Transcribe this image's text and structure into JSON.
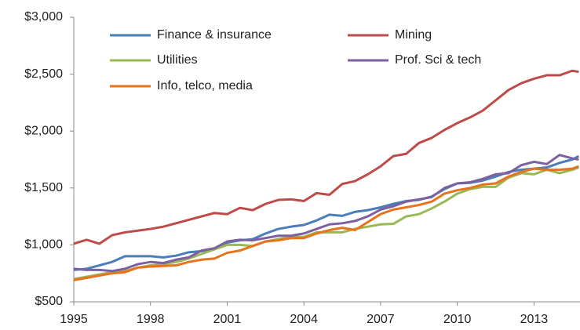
{
  "chart_data": {
    "type": "line",
    "x": [
      1995,
      1995.5,
      1996,
      1996.5,
      1997,
      1997.5,
      1998,
      1998.5,
      1999,
      1999.5,
      2000,
      2000.5,
      2001,
      2001.5,
      2002,
      2002.5,
      2003,
      2003.5,
      2004,
      2004.5,
      2005,
      2005.5,
      2006,
      2006.5,
      2007,
      2007.5,
      2008,
      2008.5,
      2009,
      2009.5,
      2010,
      2010.5,
      2011,
      2011.5,
      2012,
      2012.5,
      2013,
      2013.5,
      2014,
      2014.5,
      2014.75
    ],
    "series": [
      {
        "name": "Finance & insurance",
        "color": "#4a7ebb",
        "values": [
          780,
          790,
          820,
          850,
          900,
          900,
          900,
          890,
          905,
          935,
          945,
          965,
          1020,
          1040,
          1050,
          1100,
          1140,
          1160,
          1175,
          1215,
          1265,
          1255,
          1290,
          1305,
          1330,
          1360,
          1385,
          1395,
          1425,
          1490,
          1540,
          1545,
          1565,
          1600,
          1640,
          1660,
          1670,
          1680,
          1720,
          1750,
          1780
        ]
      },
      {
        "name": "Mining",
        "color": "#be4b48",
        "values": [
          1010,
          1045,
          1010,
          1085,
          1110,
          1125,
          1140,
          1160,
          1190,
          1220,
          1250,
          1280,
          1270,
          1325,
          1305,
          1360,
          1395,
          1400,
          1385,
          1455,
          1440,
          1535,
          1560,
          1620,
          1690,
          1780,
          1800,
          1895,
          1940,
          2010,
          2070,
          2120,
          2180,
          2270,
          2360,
          2420,
          2460,
          2490,
          2490,
          2530,
          2520
        ]
      },
      {
        "name": "Utilities",
        "color": "#98b954",
        "values": [
          700,
          720,
          740,
          760,
          770,
          800,
          820,
          830,
          850,
          880,
          920,
          960,
          1000,
          1000,
          990,
          1030,
          1050,
          1070,
          1070,
          1110,
          1110,
          1110,
          1140,
          1160,
          1180,
          1185,
          1250,
          1270,
          1320,
          1380,
          1450,
          1490,
          1510,
          1510,
          1590,
          1630,
          1620,
          1660,
          1630,
          1660,
          1680
        ]
      },
      {
        "name": "Prof. Sci & tech",
        "color": "#7d60a0",
        "values": [
          790,
          780,
          780,
          770,
          790,
          830,
          850,
          840,
          870,
          890,
          950,
          970,
          1030,
          1045,
          1040,
          1060,
          1080,
          1080,
          1100,
          1140,
          1180,
          1190,
          1210,
          1250,
          1310,
          1340,
          1380,
          1400,
          1420,
          1500,
          1540,
          1550,
          1580,
          1620,
          1630,
          1700,
          1730,
          1710,
          1790,
          1760,
          1750
        ]
      },
      {
        "name": "Info, telco, media",
        "color": "#e8731d",
        "values": [
          690,
          710,
          730,
          750,
          760,
          800,
          810,
          815,
          820,
          850,
          870,
          880,
          930,
          950,
          990,
          1030,
          1040,
          1060,
          1060,
          1100,
          1130,
          1150,
          1130,
          1200,
          1270,
          1310,
          1330,
          1350,
          1380,
          1450,
          1480,
          1500,
          1530,
          1540,
          1600,
          1640,
          1670,
          1660,
          1660,
          1670,
          1690
        ]
      }
    ],
    "xlim": [
      1995,
      2014.8
    ],
    "xticks": [
      1995,
      1998,
      2001,
      2004,
      2007,
      2010,
      2013
    ],
    "ylim": [
      500,
      3000
    ],
    "yticks": [
      {
        "value": 500,
        "label": "$500"
      },
      {
        "value": 1000,
        "label": "$1,000"
      },
      {
        "value": 1500,
        "label": "$1,500"
      },
      {
        "value": 2000,
        "label": "$2,000"
      },
      {
        "value": 2500,
        "label": "$2,500"
      },
      {
        "value": 3000,
        "label": "$3,000"
      }
    ],
    "grid": false
  }
}
